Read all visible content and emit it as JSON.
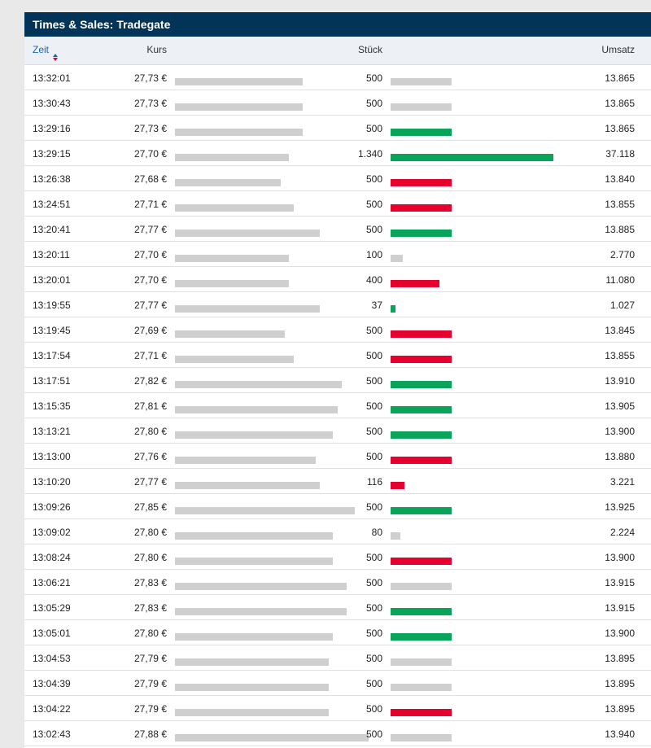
{
  "title": "Times & Sales: Tradegate",
  "columns": {
    "zeit": "Zeit",
    "kurs": "Kurs",
    "stueck": "Stück",
    "umsatz": "Umsatz"
  },
  "colors": {
    "up": "#0aa35a",
    "down": "#e5002f",
    "neutral": "#cfcfcf",
    "header": "#023358"
  },
  "rows": [
    {
      "zeit": "13:32:01",
      "kurs": "27,73 €",
      "kurs_value": 27.73,
      "stueck": "500",
      "stueck_value": 500,
      "umsatz": "13.865",
      "trend": "neutral"
    },
    {
      "zeit": "13:30:43",
      "kurs": "27,73 €",
      "kurs_value": 27.73,
      "stueck": "500",
      "stueck_value": 500,
      "umsatz": "13.865",
      "trend": "neutral"
    },
    {
      "zeit": "13:29:16",
      "kurs": "27,73 €",
      "kurs_value": 27.73,
      "stueck": "500",
      "stueck_value": 500,
      "umsatz": "13.865",
      "trend": "up"
    },
    {
      "zeit": "13:29:15",
      "kurs": "27,70 €",
      "kurs_value": 27.7,
      "stueck": "1.340",
      "stueck_value": 1340,
      "umsatz": "37.118",
      "trend": "up"
    },
    {
      "zeit": "13:26:38",
      "kurs": "27,68 €",
      "kurs_value": 27.68,
      "stueck": "500",
      "stueck_value": 500,
      "umsatz": "13.840",
      "trend": "down"
    },
    {
      "zeit": "13:24:51",
      "kurs": "27,71 €",
      "kurs_value": 27.71,
      "stueck": "500",
      "stueck_value": 500,
      "umsatz": "13.855",
      "trend": "down"
    },
    {
      "zeit": "13:20:41",
      "kurs": "27,77 €",
      "kurs_value": 27.77,
      "stueck": "500",
      "stueck_value": 500,
      "umsatz": "13.885",
      "trend": "up"
    },
    {
      "zeit": "13:20:11",
      "kurs": "27,70 €",
      "kurs_value": 27.7,
      "stueck": "100",
      "stueck_value": 100,
      "umsatz": "2.770",
      "trend": "neutral"
    },
    {
      "zeit": "13:20:01",
      "kurs": "27,70 €",
      "kurs_value": 27.7,
      "stueck": "400",
      "stueck_value": 400,
      "umsatz": "11.080",
      "trend": "down"
    },
    {
      "zeit": "13:19:55",
      "kurs": "27,77 €",
      "kurs_value": 27.77,
      "stueck": "37",
      "stueck_value": 37,
      "umsatz": "1.027",
      "trend": "up"
    },
    {
      "zeit": "13:19:45",
      "kurs": "27,69 €",
      "kurs_value": 27.69,
      "stueck": "500",
      "stueck_value": 500,
      "umsatz": "13.845",
      "trend": "down"
    },
    {
      "zeit": "13:17:54",
      "kurs": "27,71 €",
      "kurs_value": 27.71,
      "stueck": "500",
      "stueck_value": 500,
      "umsatz": "13.855",
      "trend": "down"
    },
    {
      "zeit": "13:17:51",
      "kurs": "27,82 €",
      "kurs_value": 27.82,
      "stueck": "500",
      "stueck_value": 500,
      "umsatz": "13.910",
      "trend": "up"
    },
    {
      "zeit": "13:15:35",
      "kurs": "27,81 €",
      "kurs_value": 27.81,
      "stueck": "500",
      "stueck_value": 500,
      "umsatz": "13.905",
      "trend": "up"
    },
    {
      "zeit": "13:13:21",
      "kurs": "27,80 €",
      "kurs_value": 27.8,
      "stueck": "500",
      "stueck_value": 500,
      "umsatz": "13.900",
      "trend": "up"
    },
    {
      "zeit": "13:13:00",
      "kurs": "27,76 €",
      "kurs_value": 27.76,
      "stueck": "500",
      "stueck_value": 500,
      "umsatz": "13.880",
      "trend": "down"
    },
    {
      "zeit": "13:10:20",
      "kurs": "27,77 €",
      "kurs_value": 27.77,
      "stueck": "116",
      "stueck_value": 116,
      "umsatz": "3.221",
      "trend": "down"
    },
    {
      "zeit": "13:09:26",
      "kurs": "27,85 €",
      "kurs_value": 27.85,
      "stueck": "500",
      "stueck_value": 500,
      "umsatz": "13.925",
      "trend": "up"
    },
    {
      "zeit": "13:09:02",
      "kurs": "27,80 €",
      "kurs_value": 27.8,
      "stueck": "80",
      "stueck_value": 80,
      "umsatz": "2.224",
      "trend": "neutral"
    },
    {
      "zeit": "13:08:24",
      "kurs": "27,80 €",
      "kurs_value": 27.8,
      "stueck": "500",
      "stueck_value": 500,
      "umsatz": "13.900",
      "trend": "down"
    },
    {
      "zeit": "13:06:21",
      "kurs": "27,83 €",
      "kurs_value": 27.83,
      "stueck": "500",
      "stueck_value": 500,
      "umsatz": "13.915",
      "trend": "neutral"
    },
    {
      "zeit": "13:05:29",
      "kurs": "27,83 €",
      "kurs_value": 27.83,
      "stueck": "500",
      "stueck_value": 500,
      "umsatz": "13.915",
      "trend": "up"
    },
    {
      "zeit": "13:05:01",
      "kurs": "27,80 €",
      "kurs_value": 27.8,
      "stueck": "500",
      "stueck_value": 500,
      "umsatz": "13.900",
      "trend": "up"
    },
    {
      "zeit": "13:04:53",
      "kurs": "27,79 €",
      "kurs_value": 27.79,
      "stueck": "500",
      "stueck_value": 500,
      "umsatz": "13.895",
      "trend": "neutral"
    },
    {
      "zeit": "13:04:39",
      "kurs": "27,79 €",
      "kurs_value": 27.79,
      "stueck": "500",
      "stueck_value": 500,
      "umsatz": "13.895",
      "trend": "neutral"
    },
    {
      "zeit": "13:04:22",
      "kurs": "27,79 €",
      "kurs_value": 27.79,
      "stueck": "500",
      "stueck_value": 500,
      "umsatz": "13.895",
      "trend": "down"
    },
    {
      "zeit": "13:02:43",
      "kurs": "27,88 €",
      "kurs_value": 27.88,
      "stueck": "500",
      "stueck_value": 500,
      "umsatz": "13.940",
      "trend": "neutral"
    }
  ]
}
